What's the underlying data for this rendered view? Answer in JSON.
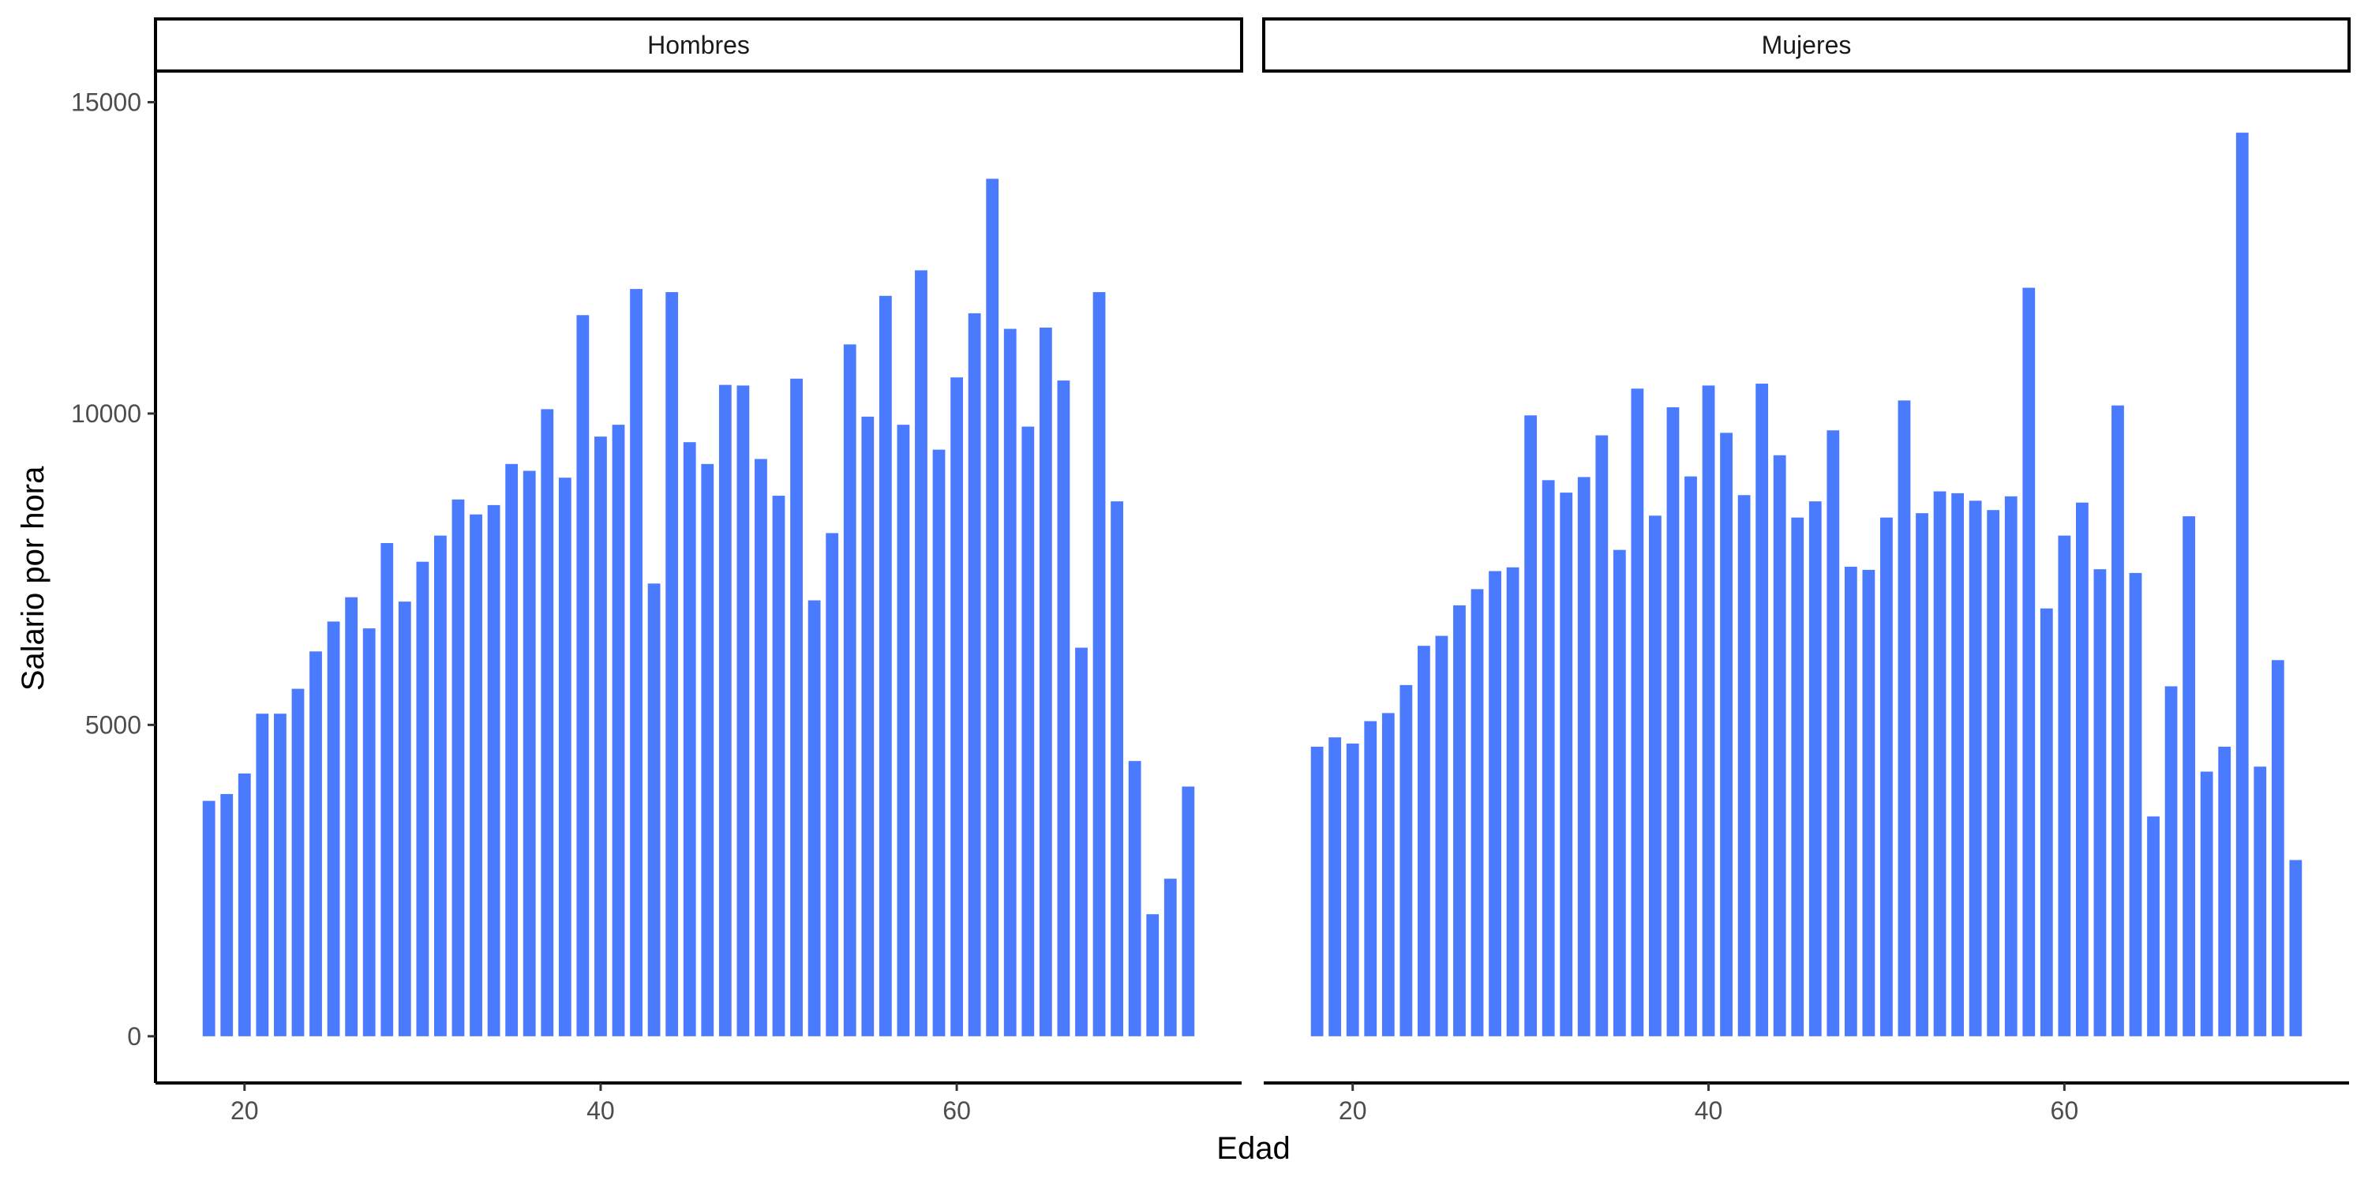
{
  "chart_data": {
    "type": "bar",
    "xlabel": "Edad",
    "ylabel": "Salario por hora",
    "xlim": [
      15,
      76
    ],
    "ylim": [
      -750,
      15500
    ],
    "xticks": [
      20,
      40,
      60
    ],
    "yticks": [
      0,
      5000,
      10000,
      15000
    ],
    "bar_color": "#4a7bff",
    "x": [
      18,
      19,
      20,
      21,
      22,
      23,
      24,
      25,
      26,
      27,
      28,
      29,
      30,
      31,
      32,
      33,
      34,
      35,
      36,
      37,
      38,
      39,
      40,
      41,
      42,
      43,
      44,
      45,
      46,
      47,
      48,
      49,
      50,
      51,
      52,
      53,
      54,
      55,
      56,
      57,
      58,
      59,
      60,
      61,
      62,
      63,
      64,
      65,
      66,
      67,
      68,
      69,
      70,
      71,
      72,
      73
    ],
    "panels": [
      {
        "name": "Hombres",
        "values": [
          3780,
          3890,
          4220,
          5180,
          5180,
          5580,
          6180,
          6660,
          7050,
          6550,
          7920,
          6980,
          7620,
          8040,
          8620,
          8380,
          8530,
          9190,
          9080,
          10070,
          8970,
          11580,
          9630,
          9820,
          12000,
          7270,
          11950,
          9540,
          9190,
          10460,
          10450,
          9270,
          8680,
          10560,
          7000,
          8080,
          11110,
          9950,
          11890,
          9820,
          12300,
          9420,
          10580,
          11610,
          13770,
          11360,
          9790,
          11380,
          10530,
          6240,
          11950,
          8590,
          4420,
          1960,
          2530,
          4010
        ]
      },
      {
        "name": "Mujeres",
        "values": [
          4650,
          4800,
          4700,
          5060,
          5190,
          5640,
          6270,
          6430,
          6920,
          7180,
          7470,
          7530,
          9970,
          8930,
          8730,
          8980,
          9650,
          7810,
          10400,
          8360,
          10100,
          8990,
          10450,
          9690,
          8690,
          10480,
          9330,
          8330,
          8590,
          9730,
          7540,
          7490,
          8330,
          10210,
          8400,
          8750,
          8720,
          8600,
          8450,
          8670,
          12020,
          6870,
          8040,
          8570,
          7500,
          10130,
          7440,
          3530,
          5620,
          8350,
          4250,
          4650,
          14510,
          4330,
          6040,
          2830
        ]
      }
    ]
  }
}
